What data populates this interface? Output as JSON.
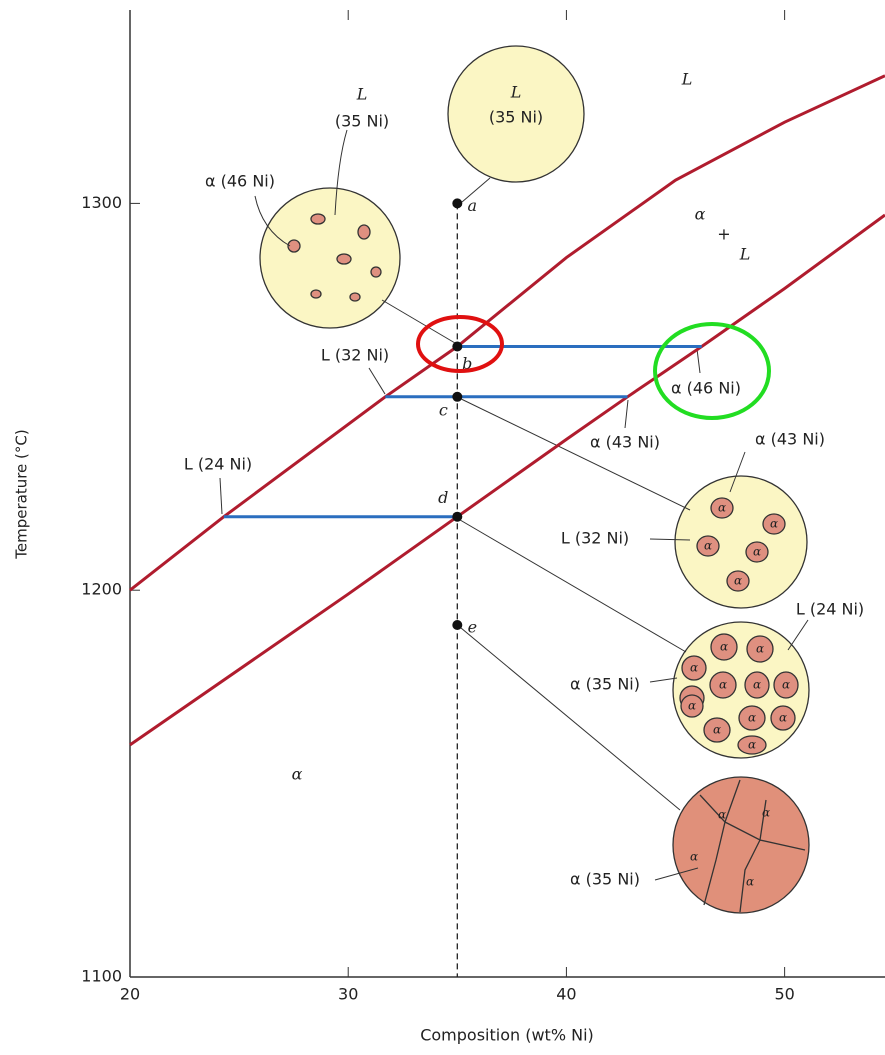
{
  "chart_data": {
    "type": "line",
    "xlabel": "Composition (wt% Ni)",
    "ylabel": "Temperature (°C)",
    "xlim": [
      20,
      54.6
    ],
    "ylim": [
      1100,
      1350
    ],
    "xticks": [
      20,
      30,
      40,
      50
    ],
    "yticks": [
      1100,
      1200,
      1300
    ],
    "series": [
      {
        "color": "#b01c2e",
        "x": [
          20,
          24.3,
          31.7,
          35,
          40,
          45,
          50,
          54.6
        ],
        "values": [
          1200,
          1219,
          1250,
          1263,
          1286,
          1306,
          1321,
          1333
        ]
      },
      {
        "color": "#b01c2e",
        "x": [
          20,
          30,
          35,
          40,
          42.8,
          46.2,
          50,
          54.6
        ],
        "values": [
          1160,
          1199,
          1219,
          1239,
          1250,
          1263,
          1278,
          1297
        ]
      }
    ],
    "tie_lines": [
      {
        "color": "#2a6ebf",
        "x": [
          35,
          46.2
        ],
        "values": [
          1263,
          1263
        ]
      },
      {
        "color": "#2a6ebf",
        "x": [
          31.7,
          42.8
        ],
        "values": [
          1250,
          1250
        ]
      },
      {
        "color": "#2a6ebf",
        "x": [
          24.3,
          35
        ],
        "values": [
          1219,
          1219
        ]
      }
    ],
    "points": {
      "labels": [
        "a",
        "b",
        "c",
        "d",
        "e"
      ],
      "x": [
        35,
        35,
        35,
        35,
        35
      ],
      "values": [
        1300,
        1263,
        1250,
        1219,
        1191
      ]
    },
    "annotations": [
      "L",
      "α",
      "+",
      "L",
      "α",
      "L",
      "(35 Ni)",
      "L",
      "(35 Ni)",
      "α (46 Ni)",
      "L (32 Ni)",
      "α (46 Ni)",
      "α (43 Ni)",
      "L (24 Ni)",
      "α (43 Ni)",
      "L (32 Ni)",
      "L (24 Ni)",
      "α (35 Ni)",
      "α (35 Ni)"
    ],
    "grain_label": "α"
  }
}
